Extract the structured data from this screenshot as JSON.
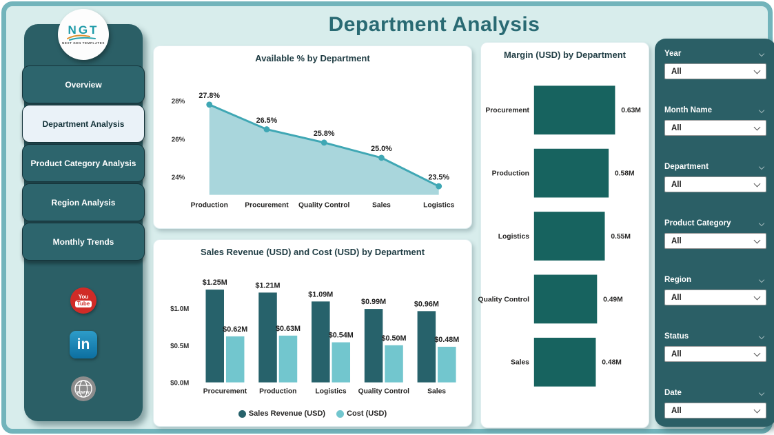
{
  "page": {
    "title": "Department Analysis"
  },
  "logo": {
    "text": "NGT",
    "subtitle": "NEXT GEN TEMPLATES"
  },
  "sidebar": {
    "items": [
      {
        "label": "Overview",
        "active": false
      },
      {
        "label": "Department Analysis",
        "active": true
      },
      {
        "label": "Product Category Analysis",
        "active": false
      },
      {
        "label": "Region Analysis",
        "active": false
      },
      {
        "label": "Monthly Trends",
        "active": false
      }
    ],
    "social": {
      "youtube": {
        "top": "You",
        "bottom": "Tube"
      },
      "linkedin": {
        "text": "in"
      },
      "website": {
        "text": "www"
      }
    }
  },
  "filters": [
    {
      "label": "Year",
      "value": "All"
    },
    {
      "label": "Month Name",
      "value": "All"
    },
    {
      "label": "Department",
      "value": "All"
    },
    {
      "label": "Product Category",
      "value": "All"
    },
    {
      "label": "Region",
      "value": "All"
    },
    {
      "label": "Status",
      "value": "All"
    },
    {
      "label": "Date",
      "value": "All"
    }
  ],
  "colors": {
    "accent_dark_teal": "#27626b",
    "accent_light_teal": "#72c6ce",
    "margin_bar": "#17635f",
    "line": "#3fa7b4",
    "area_fill": "#a9d6dc",
    "panel": "#2b5f66",
    "background": "#d8edec",
    "title": "#296a73"
  },
  "chart_data": [
    {
      "type": "area",
      "title": "Available % by Department",
      "categories": [
        "Production",
        "Procurement",
        "Quality Control",
        "Sales",
        "Logistics"
      ],
      "values": [
        27.8,
        26.5,
        25.8,
        25.0,
        23.5
      ],
      "labels": [
        "27.8%",
        "26.5%",
        "25.8%",
        "25.0%",
        "23.5%"
      ],
      "yticks": [
        24,
        26,
        28
      ],
      "ytick_labels": [
        "24%",
        "26%",
        "28%"
      ],
      "ylim": [
        23.05,
        28.9
      ],
      "grid": false,
      "line_color": "#3fa7b4",
      "fill_color": "#a9d6dc"
    },
    {
      "type": "bar",
      "title": "Sales Revenue (USD) and Cost (USD) by Department",
      "categories": [
        "Procurement",
        "Production",
        "Logistics",
        "Quality Control",
        "Sales"
      ],
      "series": [
        {
          "name": "Sales Revenue (USD)",
          "color": "#27626b",
          "values": [
            1.25,
            1.21,
            1.09,
            0.99,
            0.96
          ],
          "labels": [
            "$1.25M",
            "$1.21M",
            "$1.09M",
            "$0.99M",
            "$0.96M"
          ]
        },
        {
          "name": "Cost (USD)",
          "color": "#72c6ce",
          "values": [
            0.62,
            0.63,
            0.54,
            0.5,
            0.48
          ],
          "labels": [
            "$0.62M",
            "$0.63M",
            "$0.54M",
            "$0.50M",
            "$0.48M"
          ]
        }
      ],
      "yticks": [
        0,
        0.5,
        1.0
      ],
      "ytick_labels": [
        "$0.0M",
        "$0.5M",
        "$1.0M"
      ],
      "ylim": [
        0,
        1.45
      ],
      "grid": false,
      "legend_position": "bottom"
    },
    {
      "type": "hbar",
      "title": "Margin (USD) by Department",
      "categories": [
        "Procurement",
        "Production",
        "Logistics",
        "Quality Control",
        "Sales"
      ],
      "values": [
        0.63,
        0.58,
        0.55,
        0.49,
        0.48
      ],
      "labels": [
        "0.63M",
        "0.58M",
        "0.55M",
        "0.49M",
        "0.48M"
      ],
      "xlim": [
        0,
        0.75
      ],
      "grid": false,
      "color": "#17635f"
    }
  ]
}
